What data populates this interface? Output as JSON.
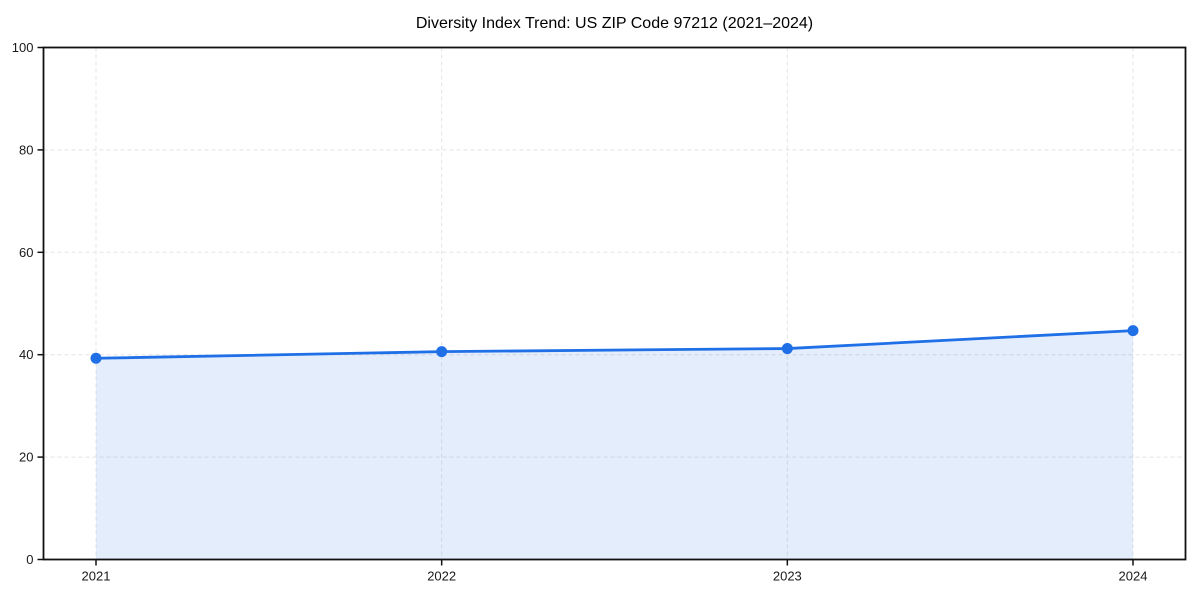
{
  "chart_data": {
    "type": "line",
    "title": "Diversity Index Trend: US ZIP Code 97212 (2021–2024)",
    "categories": [
      "2021",
      "2022",
      "2023",
      "2024"
    ],
    "series": [
      {
        "name": "Diversity Index",
        "values": [
          39.3,
          40.6,
          41.2,
          44.7
        ]
      }
    ],
    "xlabel": "",
    "ylabel": "",
    "ylim": [
      0,
      100
    ],
    "yticks": [
      0,
      20,
      40,
      60,
      80,
      100
    ],
    "grid": {
      "style": "dashed",
      "horizontal": true,
      "vertical": true
    },
    "legend_position": "none",
    "marker": "circle",
    "area_fill": true,
    "colors": {
      "line": "#1f6fe6",
      "marker": "#1f6fe6",
      "area": "#1f6fe6",
      "area_opacity": 0.12,
      "grid": "#e4e4e4",
      "axis": "#111111",
      "tick_label": "#1a1a1a",
      "title": "#000000",
      "background": "#ffffff"
    }
  }
}
